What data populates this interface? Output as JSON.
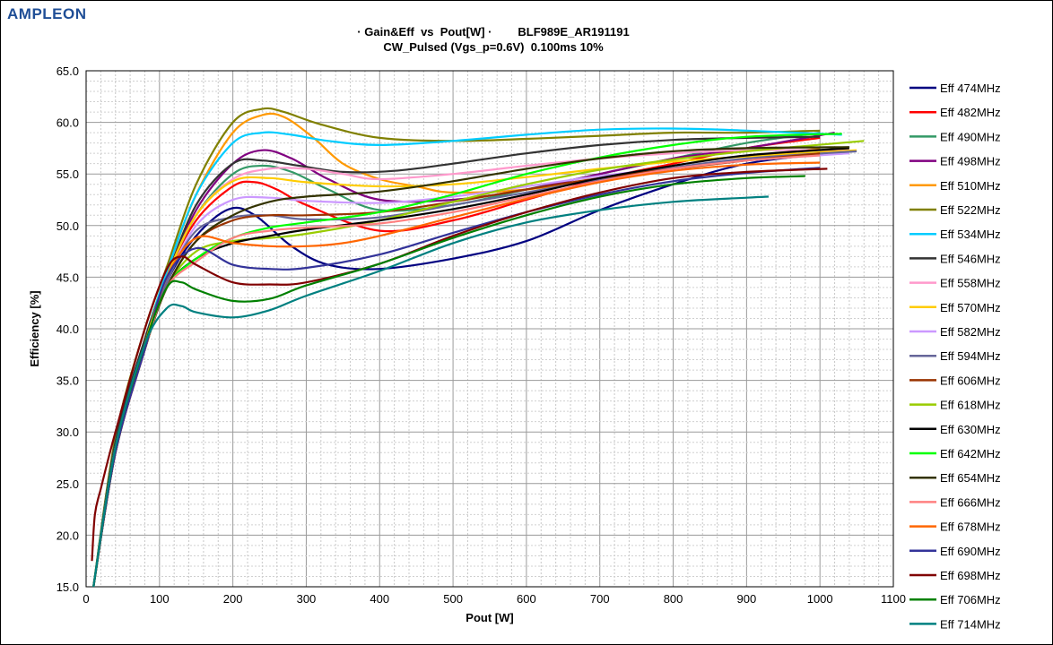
{
  "logo": {
    "text": "AMPLEON",
    "color": "#1f4e96"
  },
  "chart_data": {
    "type": "line",
    "title": "· Gain&Eff  vs  Pout[W] ·        BLF989E_AR191191",
    "subtitle": "CW_Pulsed (Vgs_p=0.6V)  0.100ms 10%",
    "xlabel": "Pout [W]",
    "ylabel": "Efficiency  [%]",
    "xlim": [
      0,
      1100
    ],
    "ylim": [
      15,
      65
    ],
    "xticks": [
      0,
      100,
      200,
      300,
      400,
      500,
      600,
      700,
      800,
      900,
      1000,
      1100
    ],
    "yticks": [
      15,
      20,
      25,
      30,
      35,
      40,
      45,
      50,
      55,
      60,
      65
    ],
    "grid": true,
    "legend_position": "right",
    "series": [
      {
        "name": "Eff 474MHz",
        "color": "#000080",
        "x": [
          10,
          40,
          80,
          110,
          150,
          195,
          230,
          280,
          330,
          400,
          500,
          600,
          700,
          800,
          900,
          1010
        ],
        "y": [
          15,
          28,
          38,
          44.5,
          49,
          51.6,
          51,
          48,
          46.2,
          45.8,
          46.8,
          48.5,
          51.5,
          54,
          56,
          57
        ]
      },
      {
        "name": "Eff 482MHz",
        "color": "#ff0000",
        "x": [
          10,
          40,
          80,
          110,
          150,
          200,
          230,
          260,
          300,
          400,
          500,
          600,
          700,
          800,
          900,
          1000
        ],
        "y": [
          15,
          28,
          38,
          45,
          50.5,
          53.8,
          54.2,
          53.5,
          52,
          49.5,
          50.5,
          52.5,
          54.5,
          56,
          57.5,
          58.5
        ]
      },
      {
        "name": "Eff 490MHz",
        "color": "#339966",
        "x": [
          10,
          40,
          80,
          110,
          150,
          200,
          240,
          280,
          330,
          400,
          500,
          600,
          700,
          800,
          900,
          1000
        ],
        "y": [
          15,
          28.5,
          38.5,
          45,
          51,
          55,
          55.8,
          55.2,
          53.5,
          51.5,
          52,
          53.5,
          55,
          56.5,
          58,
          59
        ]
      },
      {
        "name": "Eff 498MHz",
        "color": "#800080",
        "x": [
          10,
          40,
          80,
          110,
          150,
          200,
          240,
          280,
          330,
          400,
          500,
          600,
          700,
          800,
          900,
          1020
        ],
        "y": [
          15,
          28.5,
          38.5,
          45,
          51.5,
          56,
          57.3,
          56.5,
          54.5,
          52.5,
          52.5,
          53.5,
          55,
          56.5,
          57.5,
          59
        ]
      },
      {
        "name": "Eff 510MHz",
        "color": "#ff9900",
        "x": [
          10,
          40,
          80,
          110,
          150,
          200,
          240,
          270,
          310,
          350,
          400,
          450,
          500,
          600,
          700,
          800,
          900,
          1000
        ],
        "y": [
          15,
          29,
          39,
          45.5,
          53,
          59,
          60.7,
          60.5,
          58.5,
          56,
          54.5,
          53.8,
          53.2,
          53.5,
          54.5,
          55.5,
          56.5,
          57.5
        ]
      },
      {
        "name": "Eff 522MHz",
        "color": "#808000",
        "x": [
          10,
          40,
          80,
          110,
          150,
          200,
          240,
          270,
          320,
          400,
          500,
          600,
          700,
          800,
          900,
          1000
        ],
        "y": [
          15,
          29.5,
          40,
          46,
          54,
          60,
          61.3,
          61,
          59.8,
          58.5,
          58.2,
          58.4,
          58.7,
          59,
          59,
          59.2
        ]
      },
      {
        "name": "Eff 534MHz",
        "color": "#00ccff",
        "x": [
          10,
          40,
          80,
          110,
          150,
          200,
          240,
          280,
          330,
          400,
          500,
          600,
          700,
          800,
          900,
          1030
        ],
        "y": [
          15,
          29,
          39,
          45.5,
          53,
          58,
          59,
          58.8,
          58.2,
          57.8,
          58.2,
          58.8,
          59.3,
          59.4,
          59.2,
          58.8
        ]
      },
      {
        "name": "Eff 546MHz",
        "color": "#333333",
        "x": [
          10,
          40,
          80,
          110,
          150,
          200,
          240,
          290,
          350,
          420,
          500,
          600,
          700,
          800,
          900,
          1000
        ],
        "y": [
          15,
          29,
          39,
          45,
          52,
          56,
          56.3,
          55.8,
          55.2,
          55.3,
          56,
          57,
          57.8,
          58.3,
          58.5,
          58.6
        ]
      },
      {
        "name": "Eff 558MHz",
        "color": "#ff99cc",
        "x": [
          10,
          40,
          80,
          110,
          150,
          200,
          250,
          300,
          350,
          400,
          500,
          600,
          700,
          800,
          900,
          1040
        ],
        "y": [
          15,
          28.5,
          38.5,
          45,
          51,
          54.5,
          55.5,
          55.5,
          55,
          54.5,
          55,
          55.8,
          56.5,
          57,
          57.3,
          57.3
        ]
      },
      {
        "name": "Eff 570MHz",
        "color": "#ffcc00",
        "x": [
          10,
          40,
          80,
          110,
          150,
          200,
          250,
          300,
          400,
          500,
          600,
          700,
          800,
          900,
          1050
        ],
        "y": [
          15,
          28.5,
          38.5,
          45,
          51,
          54.3,
          54.6,
          54.2,
          53.8,
          54,
          54.7,
          55.5,
          56.2,
          56.7,
          57.3
        ]
      },
      {
        "name": "Eff 582MHz",
        "color": "#cc99ff",
        "x": [
          10,
          40,
          80,
          110,
          150,
          200,
          250,
          300,
          400,
          500,
          600,
          700,
          800,
          900,
          1040
        ],
        "y": [
          15,
          28,
          38,
          44.5,
          50,
          52.5,
          52.7,
          52.4,
          52.2,
          52.8,
          53.8,
          54.8,
          55.6,
          56.3,
          57
        ]
      },
      {
        "name": "Eff 594MHz",
        "color": "#666699",
        "x": [
          10,
          40,
          80,
          110,
          150,
          200,
          250,
          300,
          400,
          500,
          600,
          700,
          800,
          900,
          1050
        ],
        "y": [
          15,
          28,
          38,
          44.5,
          49.5,
          50.8,
          51,
          50.6,
          50.8,
          52,
          53.2,
          54.5,
          55.6,
          56.5,
          57.2
        ]
      },
      {
        "name": "Eff 606MHz",
        "color": "#993300",
        "x": [
          10,
          40,
          80,
          110,
          150,
          200,
          250,
          300,
          400,
          500,
          600,
          700,
          800,
          900,
          1000
        ],
        "y": [
          15,
          28,
          38,
          44,
          48.5,
          50.5,
          51,
          51,
          51.3,
          52.3,
          53.5,
          54.6,
          55.5,
          56.3,
          57
        ]
      },
      {
        "name": "Eff 618MHz",
        "color": "#99cc00",
        "x": [
          10,
          40,
          80,
          110,
          150,
          200,
          250,
          300,
          400,
          500,
          600,
          700,
          800,
          900,
          1060
        ],
        "y": [
          15,
          28,
          38,
          44,
          47.5,
          48.5,
          48.8,
          49.2,
          50.5,
          52.3,
          54,
          55.4,
          56.4,
          57.2,
          58.2
        ]
      },
      {
        "name": "Eff 630MHz",
        "color": "#000000",
        "x": [
          10,
          40,
          80,
          110,
          150,
          200,
          250,
          300,
          400,
          500,
          600,
          700,
          800,
          900,
          1040
        ],
        "y": [
          15,
          28,
          38,
          44,
          46.8,
          48.3,
          49,
          49.6,
          50.5,
          51.6,
          53,
          54.6,
          55.8,
          56.8,
          57.5
        ]
      },
      {
        "name": "Eff 642MHz",
        "color": "#00ff00",
        "x": [
          10,
          40,
          80,
          110,
          150,
          200,
          250,
          300,
          400,
          500,
          600,
          700,
          800,
          900,
          1030
        ],
        "y": [
          15,
          28,
          38,
          44,
          46.8,
          48.8,
          49.8,
          50.3,
          51.3,
          53,
          55,
          56.6,
          57.8,
          58.6,
          58.9
        ]
      },
      {
        "name": "Eff 654MHz",
        "color": "#333300",
        "x": [
          10,
          40,
          80,
          110,
          150,
          200,
          250,
          300,
          400,
          500,
          600,
          700,
          800,
          900,
          1040
        ],
        "y": [
          15,
          28,
          38,
          44,
          48.5,
          51,
          52.3,
          52.8,
          53.3,
          54.3,
          55.5,
          56.5,
          57.2,
          57.5,
          57.6
        ]
      },
      {
        "name": "Eff 666MHz",
        "color": "#ff8080",
        "x": [
          10,
          40,
          80,
          110,
          150,
          200,
          250,
          300,
          400,
          500,
          600,
          700,
          800,
          900,
          1000
        ],
        "y": [
          15,
          28,
          38,
          44,
          46.5,
          48.8,
          49.5,
          49.8,
          50.2,
          51.3,
          52.8,
          54.3,
          55.5,
          56.3,
          56.8
        ]
      },
      {
        "name": "Eff 678MHz",
        "color": "#ff6600",
        "x": [
          10,
          40,
          80,
          110,
          150,
          200,
          250,
          300,
          350,
          400,
          500,
          600,
          700,
          800,
          900,
          1000
        ],
        "y": [
          15,
          28,
          38,
          45,
          48.8,
          48.3,
          48,
          48,
          48.3,
          49,
          50.8,
          52.6,
          54.2,
          55.3,
          55.9,
          56.1
        ]
      },
      {
        "name": "Eff 690MHz",
        "color": "#333399",
        "x": [
          10,
          40,
          80,
          110,
          150,
          200,
          250,
          300,
          400,
          500,
          600,
          700,
          800,
          900,
          1000
        ],
        "y": [
          15,
          28,
          38,
          45,
          47.8,
          46.2,
          45.8,
          45.9,
          47.2,
          49.3,
          51.3,
          53,
          54.3,
          55.1,
          55.6
        ]
      },
      {
        "name": "Eff 698MHz",
        "color": "#800000",
        "x": [
          8,
          12,
          20,
          40,
          80,
          110,
          130,
          150,
          200,
          250,
          300,
          400,
          500,
          600,
          700,
          800,
          900,
          1010
        ],
        "y": [
          17.5,
          22,
          24.5,
          30,
          40,
          45.8,
          47,
          46.2,
          44.5,
          44.3,
          44.5,
          46.3,
          49,
          51.3,
          53.2,
          54.6,
          55.2,
          55.5
        ]
      },
      {
        "name": "Eff 706MHz",
        "color": "#008000",
        "x": [
          10,
          40,
          80,
          110,
          130,
          150,
          200,
          250,
          300,
          400,
          500,
          600,
          700,
          800,
          900,
          980
        ],
        "y": [
          15,
          28.5,
          38.5,
          44,
          44.5,
          43.8,
          42.7,
          42.9,
          44.2,
          46.3,
          48.8,
          51,
          52.8,
          54,
          54.6,
          54.8
        ]
      },
      {
        "name": "Eff 714MHz",
        "color": "#008080",
        "x": [
          10,
          40,
          80,
          110,
          130,
          150,
          200,
          250,
          300,
          400,
          500,
          600,
          700,
          800,
          900,
          930
        ],
        "y": [
          15,
          28.5,
          38.5,
          42,
          42.2,
          41.6,
          41.1,
          41.8,
          43.2,
          45.6,
          48.3,
          50.3,
          51.5,
          52.3,
          52.7,
          52.8
        ]
      }
    ]
  }
}
